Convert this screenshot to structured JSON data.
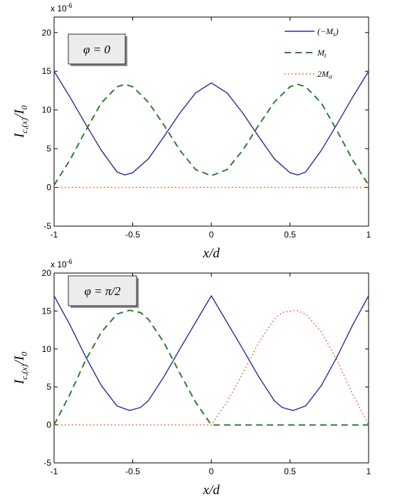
{
  "chart_data": [
    {
      "type": "line",
      "annotation": "φ = 0",
      "scale_label": "x 10",
      "scale_exp": "-6",
      "xlabel": "x/d",
      "ylabel": "I",
      "ylabel_sub": "c,(x)",
      "ylabel_tail": "/I",
      "ylabel_tail_sub": "0",
      "xlim": [
        -1,
        1
      ],
      "ylim": [
        -5,
        22
      ],
      "xticks": [
        -1,
        -0.5,
        0,
        0.5,
        1
      ],
      "xtick_labels": [
        "-1",
        "-0.5",
        "0",
        "0.5",
        "1"
      ],
      "yticks": [
        -5,
        0,
        5,
        10,
        15,
        20
      ],
      "ytick_labels": [
        "-5",
        "0",
        "5",
        "10",
        "15",
        "20"
      ],
      "legend_position": "top-right",
      "series": [
        {
          "name": "(−M",
          "name_sub": "s",
          "name_tail": ")",
          "style": "solid",
          "color": "#2b2b9e",
          "x": [
            -1,
            -0.9,
            -0.8,
            -0.7,
            -0.6,
            -0.55,
            -0.5,
            -0.4,
            -0.3,
            -0.2,
            -0.1,
            0,
            0.1,
            0.2,
            0.3,
            0.4,
            0.5,
            0.55,
            0.6,
            0.7,
            0.8,
            0.9,
            1
          ],
          "y": [
            15,
            11.7,
            8.2,
            4.8,
            2.0,
            1.6,
            1.9,
            3.7,
            6.6,
            9.6,
            12.2,
            13.5,
            12.2,
            9.6,
            6.6,
            3.7,
            1.9,
            1.6,
            2.0,
            4.8,
            8.2,
            11.7,
            15
          ]
        },
        {
          "name": "M",
          "name_sub": "t",
          "name_tail": "",
          "style": "dashed",
          "color": "#2e7d32",
          "x": [
            -1,
            -0.9,
            -0.8,
            -0.7,
            -0.6,
            -0.55,
            -0.5,
            -0.4,
            -0.3,
            -0.2,
            -0.1,
            0,
            0.1,
            0.2,
            0.3,
            0.4,
            0.5,
            0.55,
            0.6,
            0.7,
            0.8,
            0.9,
            1
          ],
          "y": [
            0.3,
            3.5,
            7.3,
            10.9,
            13.0,
            13.3,
            13.0,
            11.0,
            8.0,
            4.8,
            2.3,
            1.5,
            2.3,
            4.8,
            8.0,
            11.0,
            13.0,
            13.3,
            13.0,
            10.9,
            7.3,
            3.5,
            0.3
          ]
        },
        {
          "name": "2M",
          "name_sub": "σ",
          "name_tail": "",
          "style": "dotted",
          "color": "#ff4500",
          "x": [
            -1,
            1
          ],
          "y": [
            0,
            0
          ]
        }
      ]
    },
    {
      "type": "line",
      "annotation": "φ = π/2",
      "scale_label": "x 10",
      "scale_exp": "-6",
      "xlabel": "x/d",
      "ylabel": "I",
      "ylabel_sub": "c,(x)",
      "ylabel_tail": "/I",
      "ylabel_tail_sub": "0",
      "xlim": [
        -1,
        1
      ],
      "ylim": [
        -5,
        20
      ],
      "xticks": [
        -1,
        -0.5,
        0,
        0.5,
        1
      ],
      "xtick_labels": [
        "-1",
        "-0.5",
        "0",
        "0.5",
        "1"
      ],
      "yticks": [
        -5,
        0,
        5,
        10,
        15,
        20
      ],
      "ytick_labels": [
        "-5",
        "0",
        "5",
        "10",
        "15",
        "20"
      ],
      "legend_position": "none",
      "series": [
        {
          "name": "(−M",
          "name_sub": "s",
          "name_tail": ")",
          "style": "solid",
          "color": "#2b2b9e",
          "x": [
            -1,
            -0.9,
            -0.8,
            -0.7,
            -0.6,
            -0.52,
            -0.45,
            -0.4,
            -0.3,
            -0.2,
            -0.1,
            0,
            0.1,
            0.2,
            0.3,
            0.4,
            0.45,
            0.52,
            0.6,
            0.7,
            0.8,
            0.9,
            1
          ],
          "y": [
            17,
            13.2,
            9.0,
            5.2,
            2.5,
            1.9,
            2.3,
            3.2,
            6.4,
            10.0,
            13.5,
            17,
            13.5,
            10.0,
            6.4,
            3.2,
            2.3,
            1.9,
            2.5,
            5.2,
            9.0,
            13.2,
            17
          ]
        },
        {
          "name": "M",
          "name_sub": "t",
          "name_tail": "",
          "style": "dashed",
          "color": "#2e7d32",
          "x": [
            -1,
            -0.9,
            -0.8,
            -0.7,
            -0.6,
            -0.52,
            -0.45,
            -0.4,
            -0.3,
            -0.2,
            -0.1,
            0,
            0.5,
            1
          ],
          "y": [
            0,
            4.0,
            8.5,
            12.2,
            14.6,
            15.1,
            14.8,
            13.9,
            10.8,
            6.8,
            3.0,
            0,
            0,
            0
          ]
        },
        {
          "name": "2M",
          "name_sub": "σ",
          "name_tail": "",
          "style": "dotted",
          "color": "#ff4500",
          "x": [
            -1,
            -0.5,
            0,
            0.1,
            0.2,
            0.3,
            0.4,
            0.45,
            0.54,
            0.6,
            0.7,
            0.8,
            0.9,
            1
          ],
          "y": [
            0,
            0,
            0,
            3.0,
            6.8,
            10.8,
            13.9,
            14.8,
            15.1,
            14.6,
            12.2,
            8.5,
            4.0,
            0
          ]
        }
      ]
    }
  ]
}
